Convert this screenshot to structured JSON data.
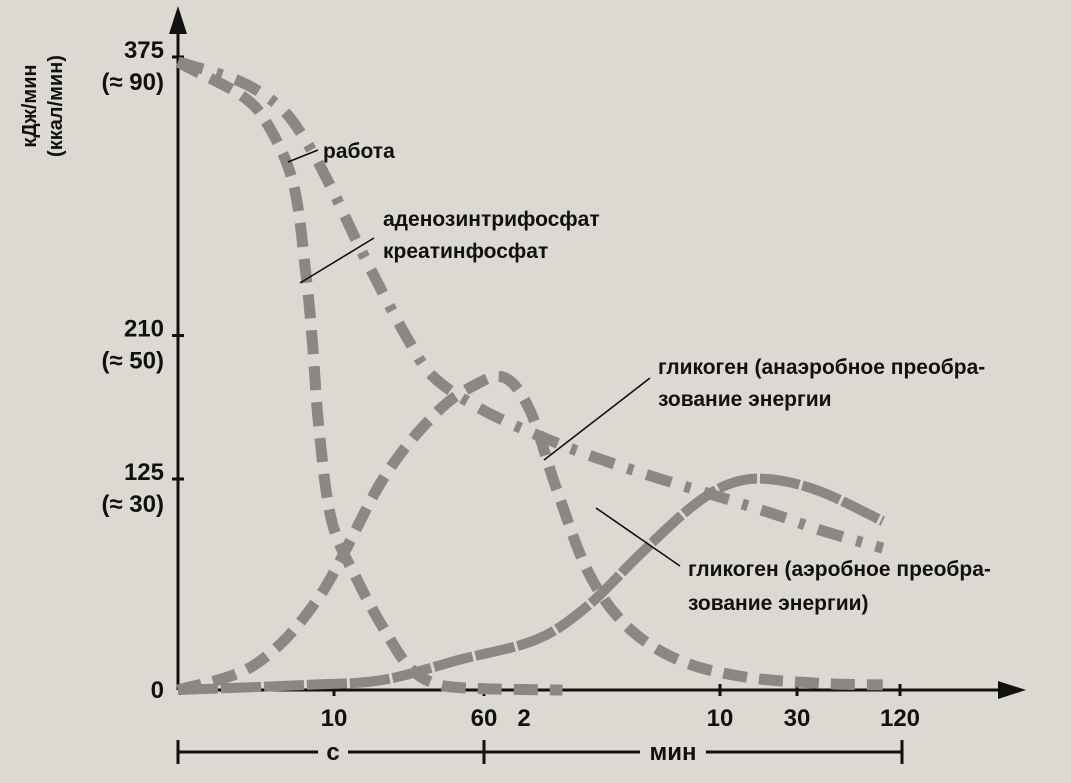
{
  "chart_data": {
    "type": "line",
    "y_axis": {
      "label_line1": "кДж/мин",
      "label_line2": "(ккал/мин)",
      "ticks": [
        {
          "value": 0,
          "label": "0",
          "sub": ""
        },
        {
          "value": 125,
          "label": "125",
          "sub": "(≈ 30)"
        },
        {
          "value": 210,
          "label": "210",
          "sub": "(≈ 50)"
        },
        {
          "value": 375,
          "label": "375",
          "sub": "(≈ 90)"
        }
      ],
      "ylim": [
        0,
        375
      ]
    },
    "x_axis": {
      "ticks": [
        "10",
        "60",
        "2",
        "10",
        "30",
        "120"
      ],
      "segments": [
        {
          "label": "с"
        },
        {
          "label": "мин"
        }
      ]
    },
    "series": [
      {
        "name": "работа",
        "style": "dash-dot",
        "points": [
          [
            0,
            372
          ],
          [
            0.1,
            370
          ],
          [
            0.5,
            360
          ],
          [
            0.8,
            345
          ],
          [
            1.0,
            325
          ],
          [
            1.2,
            297
          ],
          [
            1.4,
            265
          ],
          [
            1.6,
            235
          ],
          [
            1.8,
            207
          ],
          [
            2.0,
            185
          ],
          [
            2.4,
            165
          ],
          [
            3.0,
            145
          ],
          [
            3.6,
            129
          ],
          [
            4.2,
            115
          ],
          [
            4.7,
            103
          ],
          [
            5.0,
            95
          ],
          [
            5.5,
            84
          ]
        ]
      },
      {
        "name": "аденозинтрифосфат креатинфосфат",
        "style": "dashed",
        "points": [
          [
            0,
            372
          ],
          [
            0.1,
            368
          ],
          [
            0.5,
            352
          ],
          [
            0.7,
            335
          ],
          [
            0.9,
            300
          ],
          [
            1.0,
            245
          ],
          [
            1.05,
            205
          ],
          [
            1.1,
            155
          ],
          [
            1.2,
            100
          ],
          [
            1.4,
            65
          ],
          [
            1.6,
            37
          ],
          [
            1.8,
            14
          ],
          [
            2.0,
            4
          ],
          [
            2.3,
            1
          ],
          [
            3.0,
            0
          ]
        ]
      },
      {
        "name": "гликоген (анаэробное преобразование энергии",
        "style": "dashed",
        "points": [
          [
            0,
            0
          ],
          [
            0.6,
            15
          ],
          [
            1.1,
            55
          ],
          [
            1.6,
            125
          ],
          [
            2.0,
            163
          ],
          [
            2.3,
            180
          ],
          [
            2.55,
            185
          ],
          [
            2.75,
            165
          ],
          [
            2.95,
            120
          ],
          [
            3.2,
            70
          ],
          [
            3.5,
            38
          ],
          [
            3.9,
            18
          ],
          [
            4.4,
            8
          ],
          [
            5.0,
            4
          ],
          [
            5.5,
            3
          ]
        ]
      },
      {
        "name": "гликоген (аэробное преобразование энергии)",
        "style": "solid-dotted",
        "points": [
          [
            0,
            0
          ],
          [
            1.0,
            3
          ],
          [
            1.6,
            6
          ],
          [
            2.2,
            18
          ],
          [
            2.8,
            30
          ],
          [
            3.2,
            50
          ],
          [
            3.6,
            80
          ],
          [
            4.0,
            108
          ],
          [
            4.3,
            122
          ],
          [
            4.6,
            125
          ],
          [
            5.0,
            118
          ],
          [
            5.5,
            100
          ]
        ]
      }
    ],
    "annotations": [
      {
        "text": "работа"
      },
      {
        "text": "аденозинтрифосфат"
      },
      {
        "text": "креатинфосфат"
      },
      {
        "text": "гликоген (анаэробное преобра-"
      },
      {
        "text": "зование энергии"
      },
      {
        "text": "гликоген (аэробное преобра-"
      },
      {
        "text": "зование энергии)"
      }
    ],
    "colors": {
      "curve": "#8a8784",
      "ink": "#111111",
      "paper": "#dcd9d2"
    }
  }
}
